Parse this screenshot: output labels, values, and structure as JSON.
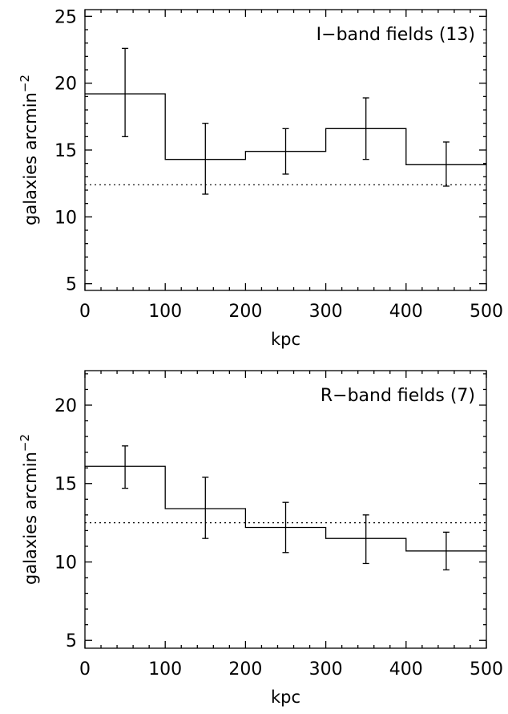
{
  "chart_data": [
    {
      "type": "histogram",
      "annotation": "I−band fields (13)",
      "xlabel": "kpc",
      "ylabel_base": "galaxies arcmin",
      "ylabel_exp": "−2",
      "xlim": [
        0,
        500
      ],
      "ylim": [
        4.5,
        25.5
      ],
      "xticks": [
        0,
        100,
        200,
        300,
        400,
        500
      ],
      "yticks": [
        5,
        10,
        15,
        20,
        25
      ],
      "bin_edges": [
        0,
        100,
        200,
        300,
        400,
        500
      ],
      "values": [
        19.2,
        14.3,
        14.9,
        16.6,
        13.9
      ],
      "err_low": [
        16.0,
        11.7,
        13.2,
        14.3,
        12.3
      ],
      "err_high": [
        22.6,
        17.0,
        16.6,
        18.9,
        15.6
      ],
      "background_level": 12.4
    },
    {
      "type": "histogram",
      "annotation": "R−band fields (7)",
      "xlabel": "kpc",
      "ylabel_base": "galaxies arcmin",
      "ylabel_exp": "−2",
      "xlim": [
        0,
        500
      ],
      "ylim": [
        4.5,
        22.2
      ],
      "xticks": [
        0,
        100,
        200,
        300,
        400,
        500
      ],
      "yticks": [
        5,
        10,
        15,
        20
      ],
      "bin_edges": [
        0,
        100,
        200,
        300,
        400,
        500
      ],
      "values": [
        16.1,
        13.4,
        12.2,
        11.5,
        10.7
      ],
      "err_low": [
        14.7,
        11.5,
        10.6,
        9.9,
        9.5
      ],
      "err_high": [
        17.4,
        15.4,
        13.8,
        13.0,
        11.9
      ],
      "background_level": 12.5
    }
  ]
}
